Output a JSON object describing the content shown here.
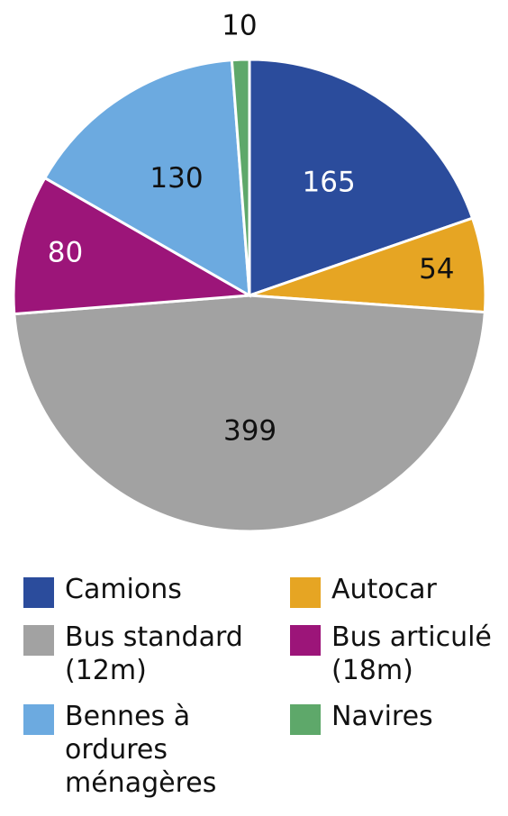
{
  "chart_data": {
    "type": "pie",
    "categories": [
      "Camions",
      "Autocar",
      "Bus standard (12m)",
      "Bus articulé (18m)",
      "Bennes à ordures ménagères",
      "Navires"
    ],
    "values": [
      165,
      54,
      399,
      80,
      130,
      10
    ],
    "colors": [
      "#2b4c9c",
      "#e6a523",
      "#a2a2a2",
      "#9c1579",
      "#6caae0",
      "#5ea86a"
    ],
    "legend": "bottom"
  }
}
